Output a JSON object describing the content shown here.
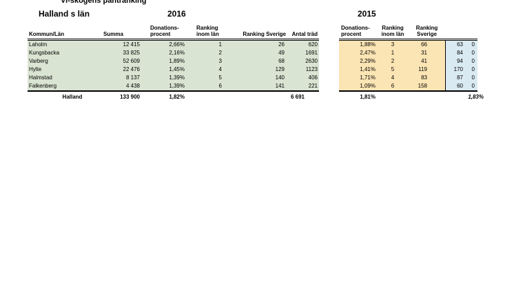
{
  "page": {
    "title": "Vi-skogens pantranking",
    "subtitle": "Halland s län"
  },
  "colors": {
    "green_fill": "#d9e4d2",
    "orange_fill": "#fce5b4",
    "blue_fill": "#daeaf2",
    "border": "#000000"
  },
  "t2016": {
    "year": "2016",
    "headers": {
      "kommun": "Kommun/Län",
      "summa": "Summa",
      "donations1": "Donations-",
      "donations2": "procent",
      "rank_lan1": "Ranking",
      "rank_lan2": "inom län",
      "rank_sverige": "Ranking Sverige",
      "antal_trad": "Antal träd"
    },
    "rows": [
      {
        "kommun": "Laholm",
        "summa": "12 415",
        "donationsprocent": "2,66%",
        "ranking_inom_lan": "1",
        "ranking_sverige": "26",
        "antal_trad": "620"
      },
      {
        "kommun": "Kungsbacka",
        "summa": "33 825",
        "donationsprocent": "2,16%",
        "ranking_inom_lan": "2",
        "ranking_sverige": "49",
        "antal_trad": "1691"
      },
      {
        "kommun": "Varberg",
        "summa": "52 609",
        "donationsprocent": "1,89%",
        "ranking_inom_lan": "3",
        "ranking_sverige": "68",
        "antal_trad": "2630"
      },
      {
        "kommun": "Hylte",
        "summa": "22 476",
        "donationsprocent": "1,45%",
        "ranking_inom_lan": "4",
        "ranking_sverige": "129",
        "antal_trad": "1123"
      },
      {
        "kommun": "Halmstad",
        "summa": "8 137",
        "donationsprocent": "1,39%",
        "ranking_inom_lan": "5",
        "ranking_sverige": "140",
        "antal_trad": "406"
      },
      {
        "kommun": "Falkenberg",
        "summa": "4 438",
        "donationsprocent": "1,39%",
        "ranking_inom_lan": "6",
        "ranking_sverige": "141",
        "antal_trad": "221"
      }
    ],
    "total": {
      "label": "Halland",
      "summa": "133 900",
      "donationsprocent": "1,82%",
      "antal_trad": "6 691"
    }
  },
  "t2015": {
    "year": "2015",
    "headers": {
      "donations1": "Donations-",
      "donations2": "procent",
      "rank_lan1": "Ranking",
      "rank_lan2": "inom län",
      "rank_sverige1": "Ranking",
      "rank_sverige2": "Sverige"
    },
    "rows": [
      {
        "donationsprocent": "1,88%",
        "ranking_inom_lan": "3",
        "ranking_sverige": "66",
        "col_a": "63",
        "col_b": "0"
      },
      {
        "donationsprocent": "2,47%",
        "ranking_inom_lan": "1",
        "ranking_sverige": "31",
        "col_a": "84",
        "col_b": "0"
      },
      {
        "donationsprocent": "2,29%",
        "ranking_inom_lan": "2",
        "ranking_sverige": "41",
        "col_a": "94",
        "col_b": "0"
      },
      {
        "donationsprocent": "1,41%",
        "ranking_inom_lan": "5",
        "ranking_sverige": "119",
        "col_a": "170",
        "col_b": "0"
      },
      {
        "donationsprocent": "1,71%",
        "ranking_inom_lan": "4",
        "ranking_sverige": "83",
        "col_a": "87",
        "col_b": "0"
      },
      {
        "donationsprocent": "1,09%",
        "ranking_inom_lan": "6",
        "ranking_sverige": "158",
        "col_a": "60",
        "col_b": "0"
      }
    ],
    "total": {
      "donationsprocent": "1,81%",
      "col_ab": "1,83%"
    }
  }
}
